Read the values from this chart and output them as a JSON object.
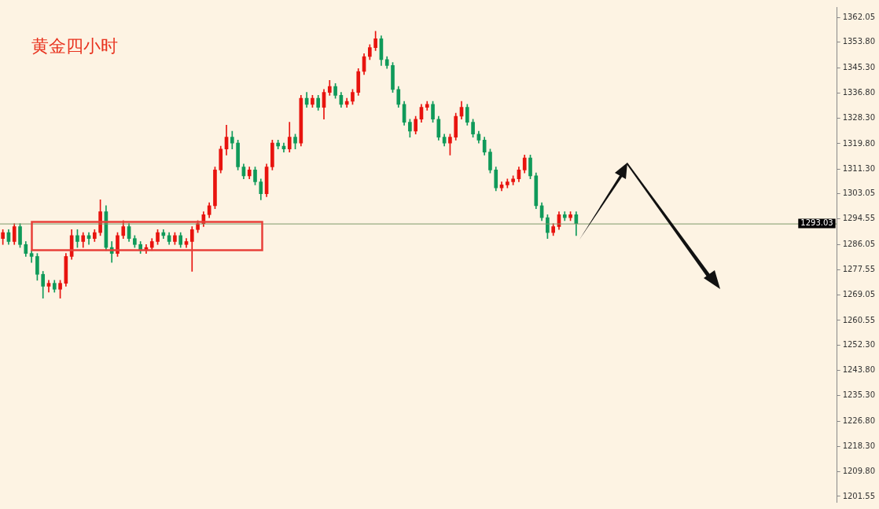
{
  "chart_data": {
    "type": "candlestick",
    "title": "黄金四小时",
    "categories": [
      null,
      null,
      null,
      null,
      null,
      null,
      null,
      null,
      null,
      null,
      null,
      null,
      null,
      null,
      null,
      null,
      null,
      null,
      null,
      null,
      null,
      null,
      null,
      null,
      null,
      null,
      null,
      null,
      null,
      null,
      null,
      null,
      null,
      null,
      null,
      null,
      null,
      null,
      null,
      null,
      null,
      null,
      null,
      null,
      null,
      null,
      null,
      null,
      null,
      null,
      null,
      null,
      null,
      null,
      null,
      null,
      null,
      null,
      null,
      null,
      null,
      null,
      null,
      null,
      null,
      null,
      null,
      null,
      null,
      null,
      null,
      null,
      null,
      null,
      null,
      null,
      null,
      null,
      null,
      null,
      null,
      null,
      null,
      null,
      null,
      null,
      null,
      null,
      null,
      null,
      null,
      null,
      null,
      null,
      null,
      null,
      null,
      null,
      null,
      null,
      null,
      null,
      null,
      null,
      null,
      null,
      null,
      null,
      null,
      null,
      null,
      null,
      null,
      null,
      null,
      null,
      null,
      null,
      null,
      null,
      null,
      null,
      null,
      null,
      null,
      null,
      null,
      null,
      null,
      null,
      null,
      null,
      null,
      null,
      null,
      null,
      null,
      null,
      null,
      null,
      null,
      null,
      null,
      null,
      null,
      null
    ],
    "ohlc": [
      [
        1288,
        1291,
        1286,
        1290
      ],
      [
        1290,
        1291,
        1286,
        1287
      ],
      [
        1287,
        1293,
        1286,
        1292
      ],
      [
        1292,
        1293,
        1285,
        1286
      ],
      [
        1286,
        1287,
        1282,
        1283
      ],
      [
        1283,
        1284,
        1280,
        1282
      ],
      [
        1282,
        1283,
        1274,
        1276
      ],
      [
        1276,
        1277,
        1268,
        1272
      ],
      [
        1272,
        1274,
        1270,
        1273
      ],
      [
        1273,
        1274,
        1270,
        1271
      ],
      [
        1271,
        1274,
        1268,
        1273
      ],
      [
        1273,
        1283,
        1272,
        1282
      ],
      [
        1282,
        1291,
        1281,
        1289
      ],
      [
        1289,
        1291,
        1285,
        1287
      ],
      [
        1287,
        1290,
        1285,
        1289
      ],
      [
        1289,
        1290,
        1286,
        1288
      ],
      [
        1288,
        1291,
        1287,
        1290
      ],
      [
        1290,
        1301,
        1289,
        1297
      ],
      [
        1297,
        1299,
        1284,
        1285
      ],
      [
        1285,
        1287,
        1280,
        1283
      ],
      [
        1283,
        1290,
        1282,
        1289
      ],
      [
        1289,
        1294,
        1288,
        1292
      ],
      [
        1292,
        1293,
        1287,
        1288
      ],
      [
        1288,
        1289,
        1285,
        1286
      ],
      [
        1286,
        1287,
        1283,
        1284
      ],
      [
        1284,
        1286,
        1283,
        1285
      ],
      [
        1285,
        1288,
        1284,
        1287
      ],
      [
        1287,
        1291,
        1286,
        1290
      ],
      [
        1290,
        1291,
        1288,
        1289
      ],
      [
        1289,
        1290,
        1286,
        1287
      ],
      [
        1287,
        1290,
        1286,
        1289
      ],
      [
        1289,
        1290,
        1285,
        1286
      ],
      [
        1286,
        1288,
        1285,
        1287
      ],
      [
        1287,
        1292,
        1277,
        1291
      ],
      [
        1291,
        1294,
        1290,
        1293
      ],
      [
        1293,
        1297,
        1292,
        1296
      ],
      [
        1296,
        1300,
        1295,
        1299
      ],
      [
        1299,
        1312,
        1298,
        1311
      ],
      [
        1311,
        1319,
        1310,
        1318
      ],
      [
        1318,
        1326,
        1316,
        1322
      ],
      [
        1322,
        1324,
        1318,
        1320
      ],
      [
        1320,
        1321,
        1311,
        1312
      ],
      [
        1312,
        1313,
        1308,
        1309
      ],
      [
        1309,
        1312,
        1308,
        1311
      ],
      [
        1311,
        1312,
        1306,
        1307
      ],
      [
        1307,
        1308,
        1301,
        1303
      ],
      [
        1303,
        1313,
        1302,
        1312
      ],
      [
        1312,
        1321,
        1311,
        1320
      ],
      [
        1320,
        1321,
        1318,
        1319
      ],
      [
        1319,
        1320,
        1317,
        1318
      ],
      [
        1318,
        1327,
        1317,
        1322
      ],
      [
        1322,
        1323,
        1318,
        1320
      ],
      [
        1320,
        1336,
        1319,
        1335
      ],
      [
        1335,
        1337,
        1332,
        1333
      ],
      [
        1333,
        1336,
        1332,
        1335
      ],
      [
        1335,
        1336,
        1331,
        1332
      ],
      [
        1332,
        1338,
        1328,
        1337
      ],
      [
        1337,
        1341,
        1336,
        1339
      ],
      [
        1339,
        1340,
        1335,
        1336
      ],
      [
        1336,
        1337,
        1332,
        1333
      ],
      [
        1333,
        1335,
        1332,
        1334
      ],
      [
        1334,
        1338,
        1333,
        1337
      ],
      [
        1337,
        1345,
        1336,
        1344
      ],
      [
        1344,
        1350,
        1343,
        1349
      ],
      [
        1349,
        1353,
        1348,
        1352
      ],
      [
        1352,
        1357.5,
        1351,
        1355
      ],
      [
        1355,
        1356,
        1346,
        1348
      ],
      [
        1348,
        1349,
        1345,
        1346
      ],
      [
        1346,
        1347,
        1337,
        1338
      ],
      [
        1338,
        1339,
        1332,
        1333
      ],
      [
        1333,
        1334,
        1326,
        1327
      ],
      [
        1327,
        1328,
        1322,
        1324
      ],
      [
        1324,
        1329,
        1323,
        1328
      ],
      [
        1328,
        1333,
        1327,
        1332
      ],
      [
        1332,
        1334,
        1331,
        1333
      ],
      [
        1333,
        1334,
        1327,
        1328
      ],
      [
        1328,
        1329,
        1321,
        1322
      ],
      [
        1322,
        1323,
        1319,
        1320
      ],
      [
        1320,
        1323,
        1316,
        1322
      ],
      [
        1322,
        1330,
        1321,
        1329
      ],
      [
        1329,
        1334,
        1328,
        1332
      ],
      [
        1332,
        1333,
        1326,
        1327
      ],
      [
        1327,
        1328,
        1322,
        1323
      ],
      [
        1323,
        1324,
        1320,
        1321
      ],
      [
        1321,
        1322,
        1316,
        1317
      ],
      [
        1317,
        1318,
        1310,
        1311
      ],
      [
        1311,
        1312,
        1304,
        1305
      ],
      [
        1305,
        1307,
        1304,
        1306
      ],
      [
        1306,
        1308,
        1305,
        1307
      ],
      [
        1307,
        1309,
        1306,
        1308
      ],
      [
        1308,
        1312,
        1307,
        1311
      ],
      [
        1311,
        1316,
        1310,
        1315
      ],
      [
        1315,
        1316,
        1308,
        1309
      ],
      [
        1309,
        1310,
        1298,
        1299
      ],
      [
        1299,
        1300,
        1294,
        1295
      ],
      [
        1295,
        1296,
        1288,
        1290
      ],
      [
        1290,
        1293,
        1289,
        1292
      ],
      [
        1292,
        1297,
        1291,
        1296
      ],
      [
        1296,
        1297,
        1294,
        1295
      ],
      [
        1295,
        1297,
        1294,
        1296
      ],
      [
        1296,
        1297,
        1289,
        1293
      ],
      null,
      null,
      null,
      null,
      null,
      null,
      null,
      null,
      null,
      null,
      null,
      null,
      null,
      null,
      null,
      null,
      null,
      null,
      null,
      null,
      null,
      null,
      null,
      null,
      null,
      null,
      null,
      null,
      null,
      null,
      null,
      null,
      null,
      null,
      null,
      null,
      null,
      null,
      null,
      null,
      null,
      null,
      null,
      null,
      null
    ],
    "colors": [
      "#e8140f",
      "#109a5a",
      "#e8140f",
      "#109a5a",
      "#109a5a",
      "#109a5a",
      "#109a5a",
      "#109a5a",
      "#e8140f",
      "#109a5a",
      "#e8140f",
      "#e8140f",
      "#e8140f",
      "#109a5a",
      "#e8140f",
      "#109a5a",
      "#e8140f",
      "#e8140f",
      "#109a5a",
      "#109a5a",
      "#e8140f",
      "#e8140f",
      "#109a5a",
      "#109a5a",
      "#109a5a",
      "#e8140f",
      "#e8140f",
      "#e8140f",
      "#109a5a",
      "#109a5a",
      "#e8140f",
      "#109a5a",
      "#e8140f",
      "#e8140f",
      "#e8140f",
      "#e8140f",
      "#e8140f",
      "#e8140f",
      "#e8140f",
      "#e8140f",
      "#109a5a",
      "#109a5a",
      "#109a5a",
      "#e8140f",
      "#109a5a",
      "#109a5a",
      "#e8140f",
      "#e8140f",
      "#109a5a",
      "#109a5a",
      "#e8140f",
      "#109a5a",
      "#e8140f",
      "#109a5a",
      "#e8140f",
      "#109a5a",
      "#e8140f",
      "#e8140f",
      "#109a5a",
      "#109a5a",
      "#e8140f",
      "#e8140f",
      "#e8140f",
      "#e8140f",
      "#e8140f",
      "#e8140f",
      "#109a5a",
      "#109a5a",
      "#109a5a",
      "#109a5a",
      "#109a5a",
      "#109a5a",
      "#e8140f",
      "#e8140f",
      "#e8140f",
      "#109a5a",
      "#109a5a",
      "#109a5a",
      "#e8140f",
      "#e8140f",
      "#e8140f",
      "#109a5a",
      "#109a5a",
      "#109a5a",
      "#109a5a",
      "#109a5a",
      "#109a5a",
      "#e8140f",
      "#e8140f",
      "#e8140f",
      "#e8140f",
      "#e8140f",
      "#109a5a",
      "#109a5a",
      "#109a5a",
      "#109a5a",
      "#e8140f",
      "#e8140f",
      "#109a5a",
      "#e8140f",
      "#109a5a",
      null,
      null,
      null,
      null,
      null,
      null,
      null,
      null,
      null,
      null,
      null,
      null,
      null,
      null,
      null,
      null,
      null,
      null,
      null,
      null,
      null,
      null,
      null,
      null,
      null,
      null,
      null,
      null,
      null,
      null,
      null,
      null,
      null,
      null,
      null,
      null,
      null,
      null,
      null,
      null,
      null,
      null,
      null,
      null,
      null
    ],
    "ylim": [
      1199.7,
      1365.6
    ],
    "yticks": [
      1362.05,
      {
        "value": 1353.8,
        "label": "1353.80"
      },
      {
        "value": 1345.3,
        "label": "1345.30"
      },
      {
        "value": 1336.8,
        "label": "1336.80"
      },
      {
        "value": 1328.3,
        "label": "1328.30"
      },
      {
        "value": 1319.8,
        "label": "1319.80"
      },
      {
        "value": 1311.3,
        "label": "1311.30"
      },
      1303.05,
      1294.55,
      1286.05,
      1277.55,
      1269.05,
      1260.55,
      {
        "value": 1252.3,
        "label": "1252.30"
      },
      {
        "value": 1243.8,
        "label": "1243.80"
      },
      {
        "value": 1235.3,
        "label": "1235.30"
      },
      {
        "value": 1226.8,
        "label": "1226.80"
      },
      {
        "value": 1218.3,
        "label": "1218.30"
      },
      {
        "value": 1209.8,
        "label": "1209.80"
      },
      1201.55
    ],
    "tick_labels": "y",
    "ref_lines": [
      {
        "axis": "y",
        "value": 1293.03,
        "label": "1293.03",
        "color": "#7f9a6a"
      }
    ]
  }
}
